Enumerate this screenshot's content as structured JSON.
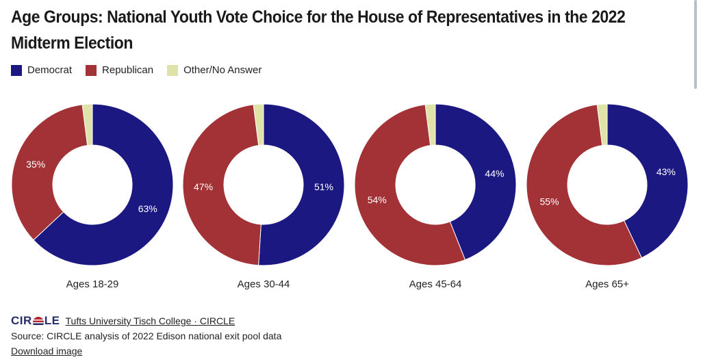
{
  "title": "Age Groups: National Youth Vote Choice for the House of Representatives in the 2022 Midterm Election",
  "legend": [
    {
      "label": "Democrat",
      "color": "#1c1882"
    },
    {
      "label": "Republican",
      "color": "#a23236"
    },
    {
      "label": "Other/No Answer",
      "color": "#dfe3a8"
    }
  ],
  "chart_data": {
    "type": "pie",
    "donut": true,
    "series_names": [
      "Democrat",
      "Republican",
      "Other/No Answer"
    ],
    "colors": [
      "#1c1882",
      "#a23236",
      "#dfe3a8"
    ],
    "groups": [
      {
        "label": "Ages 18-29",
        "values": [
          63,
          35,
          2
        ],
        "data_labels": [
          "63%",
          "35%",
          ""
        ]
      },
      {
        "label": "Ages 30-44",
        "values": [
          51,
          47,
          2
        ],
        "data_labels": [
          "51%",
          "47%",
          ""
        ]
      },
      {
        "label": "Ages 45-64",
        "values": [
          44,
          54,
          2
        ],
        "data_labels": [
          "44%",
          "54%",
          ""
        ]
      },
      {
        "label": "Ages 65+",
        "values": [
          43,
          55,
          2
        ],
        "data_labels": [
          "43%",
          "55%",
          ""
        ]
      }
    ]
  },
  "footer": {
    "logo": "CIRCLE",
    "credit_link": "Tufts University Tisch College · CIRCLE",
    "source": "Source: CIRCLE analysis of 2022 Edison national exit pool data",
    "download": "Download image"
  }
}
